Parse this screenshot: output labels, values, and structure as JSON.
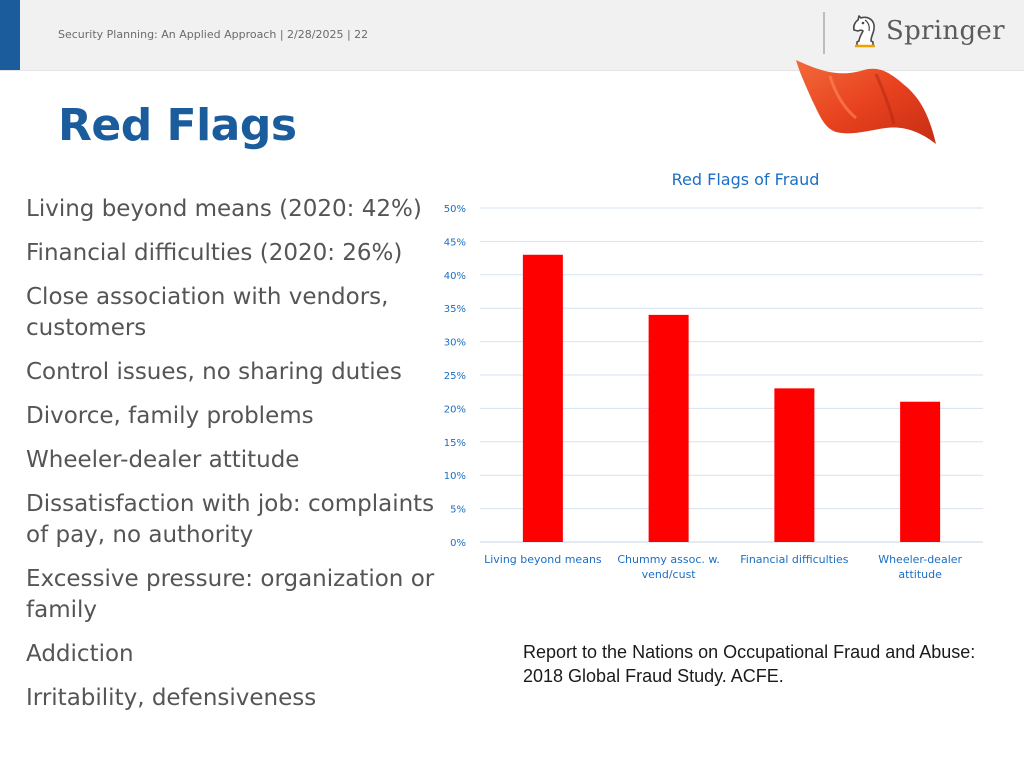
{
  "header": {
    "footer_text": "Security Planning: An Applied Approach | 2/28/2025 | 22",
    "logo_text": "Springer",
    "logo_icon": "knight-chess-piece-icon",
    "decoration_icon": "red-flag-icon"
  },
  "slide": {
    "title": "Red Flags",
    "bullets": [
      "Living beyond means (2020: 42%)",
      "Financial difficulties (2020: 26%)",
      "Close association with vendors, customers",
      "Control issues, no sharing duties",
      "Divorce, family problems",
      "Wheeler-dealer attitude",
      "Dissatisfaction with job: complaints of pay, no authority",
      "Excessive pressure: organization or family",
      "Addiction",
      "Irritability, defensiveness"
    ],
    "citation": "Report to the Nations on Occupational Fraud and Abuse: 2018 Global Fraud Study. ACFE."
  },
  "colors": {
    "accent": "#1b5c9c",
    "bar": "#ff0000",
    "chart_title": "#1b6fc4"
  },
  "chart_data": {
    "type": "bar",
    "title": "Red Flags of Fraud",
    "categories": [
      "Living beyond means",
      "Chummy assoc. w. vend/cust",
      "Financial difficulties",
      "Wheeler-dealer attitude"
    ],
    "category_lines": [
      [
        "Living beyond means"
      ],
      [
        "Chummy assoc. w.",
        "vend/cust"
      ],
      [
        "Financial difficulties"
      ],
      [
        "Wheeler-dealer",
        "attitude"
      ]
    ],
    "values": [
      0.43,
      0.34,
      0.23,
      0.21
    ],
    "ylim": [
      0,
      0.5
    ],
    "yticks": [
      "0%",
      "5%",
      "10%",
      "15%",
      "20%",
      "25%",
      "30%",
      "35%",
      "40%",
      "45%",
      "50%"
    ],
    "grid": true,
    "legend": "none",
    "xlabel": "",
    "ylabel": ""
  }
}
